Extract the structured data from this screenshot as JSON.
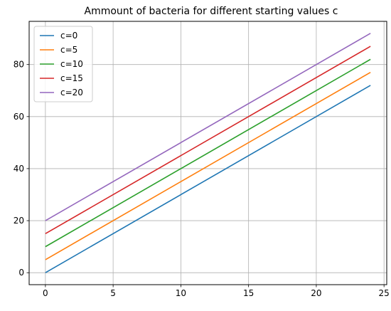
{
  "chart_data": {
    "type": "line",
    "title": "Ammount of bacteria for different starting values c",
    "xlabel": "",
    "ylabel": "",
    "xlim": [
      -1.2,
      25.2
    ],
    "ylim": [
      -4.6,
      96.6
    ],
    "x_ticks": [
      0,
      5,
      10,
      15,
      20,
      25
    ],
    "y_ticks": [
      0,
      20,
      40,
      60,
      80
    ],
    "x_tick_labels": [
      "0",
      "5",
      "10",
      "15",
      "20",
      "25"
    ],
    "y_tick_labels": [
      "0",
      "20",
      "40",
      "60",
      "80"
    ],
    "grid": true,
    "legend_position": "upper-left",
    "x": [
      0,
      24
    ],
    "series": [
      {
        "name": "c=0",
        "color": "#1f77b4",
        "values": [
          0,
          72
        ]
      },
      {
        "name": "c=5",
        "color": "#ff7f0e",
        "values": [
          5,
          77
        ]
      },
      {
        "name": "c=10",
        "color": "#2ca02c",
        "values": [
          10,
          82
        ]
      },
      {
        "name": "c=15",
        "color": "#d62728",
        "values": [
          15,
          87
        ]
      },
      {
        "name": "c=20",
        "color": "#9467bd",
        "values": [
          20,
          92
        ]
      }
    ]
  }
}
